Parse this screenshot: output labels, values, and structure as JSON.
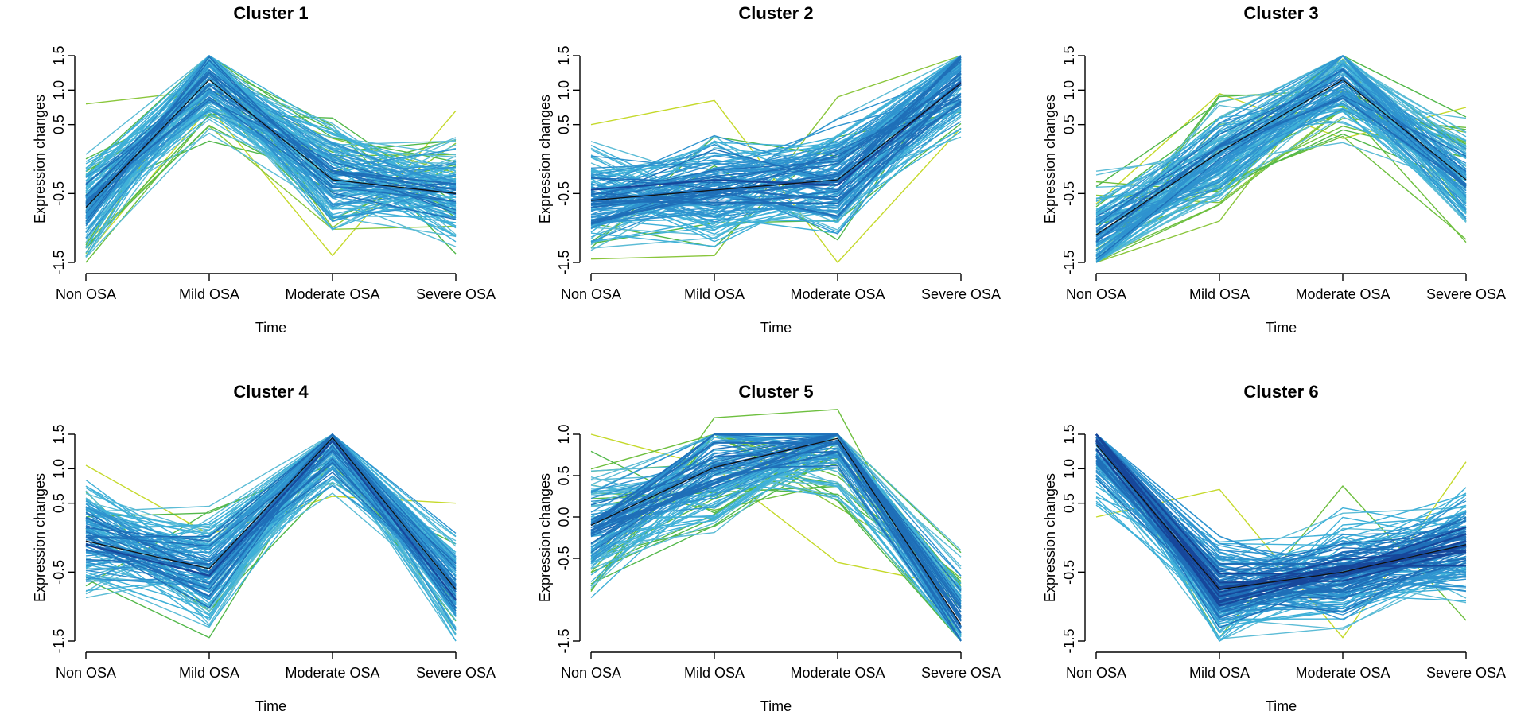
{
  "chart_data": [
    {
      "type": "line",
      "title": "Cluster 1",
      "xlabel": "Time",
      "ylabel": "Expression changes",
      "categories": [
        "Non OSA",
        "Mild OSA",
        "Moderate OSA",
        "Severe OSA"
      ],
      "y_ticks": [
        "-1.5",
        "-0.5",
        "0.5",
        "1.0",
        "1.5"
      ],
      "y_tick_values": [
        -1.5,
        -0.5,
        0.5,
        1.0,
        1.5
      ],
      "ylim": [
        -1.5,
        1.5
      ],
      "profile_count": 120,
      "centroid": [
        -0.7,
        1.15,
        -0.3,
        -0.5
      ],
      "series": [
        {
          "name": "profile",
          "values": [
            0.8,
            1.0,
            0.3,
            -0.2
          ]
        },
        {
          "name": "profile",
          "values": [
            -1.4,
            0.75,
            -1.4,
            0.7
          ]
        },
        {
          "name": "profile",
          "values": [
            -0.95,
            1.48,
            -0.35,
            -0.5
          ]
        }
      ]
    },
    {
      "type": "line",
      "title": "Cluster 2",
      "xlabel": "Time",
      "ylabel": "Expression changes",
      "categories": [
        "Non OSA",
        "Mild OSA",
        "Moderate OSA",
        "Severe OSA"
      ],
      "y_ticks": [
        "-1.5",
        "-0.5",
        "0.5",
        "1.0",
        "1.5"
      ],
      "y_tick_values": [
        -1.5,
        -0.5,
        0.5,
        1.0,
        1.5
      ],
      "ylim": [
        -1.5,
        1.5
      ],
      "profile_count": 120,
      "centroid": [
        -0.6,
        -0.45,
        -0.3,
        1.1
      ],
      "series": [
        {
          "name": "profile",
          "values": [
            0.5,
            0.85,
            -1.5,
            0.45
          ]
        },
        {
          "name": "profile",
          "values": [
            -1.45,
            -1.4,
            0.9,
            1.5
          ]
        },
        {
          "name": "profile",
          "values": [
            -0.7,
            -0.5,
            -0.25,
            1.45
          ]
        }
      ]
    },
    {
      "type": "line",
      "title": "Cluster 3",
      "xlabel": "Time",
      "ylabel": "Expression changes",
      "categories": [
        "Non OSA",
        "Mild OSA",
        "Moderate OSA",
        "Severe OSA"
      ],
      "y_ticks": [
        "-1.5",
        "-0.5",
        "0.5",
        "1.0",
        "1.5"
      ],
      "y_tick_values": [
        -1.5,
        -0.5,
        0.5,
        1.0,
        1.5
      ],
      "ylim": [
        -1.5,
        1.5
      ],
      "profile_count": 120,
      "centroid": [
        -1.1,
        0.1,
        1.15,
        -0.3
      ],
      "series": [
        {
          "name": "profile",
          "values": [
            -0.65,
            0.95,
            0.3,
            0.75
          ]
        },
        {
          "name": "profile",
          "values": [
            -1.5,
            -0.9,
            1.45,
            -0.9
          ]
        },
        {
          "name": "profile",
          "values": [
            -1.2,
            0.2,
            1.3,
            -0.4
          ]
        }
      ]
    },
    {
      "type": "line",
      "title": "Cluster 4",
      "xlabel": "Time",
      "ylabel": "Expression changes",
      "categories": [
        "Non OSA",
        "Mild OSA",
        "Moderate OSA",
        "Severe OSA"
      ],
      "y_ticks": [
        "-1.5",
        "-0.5",
        "0.5",
        "1.0",
        "1.5"
      ],
      "y_tick_values": [
        -1.5,
        -0.5,
        0.5,
        1.0,
        1.5
      ],
      "ylim": [
        -1.5,
        1.5
      ],
      "profile_count": 120,
      "centroid": [
        -0.05,
        -0.45,
        1.45,
        -0.75
      ],
      "series": [
        {
          "name": "profile",
          "values": [
            1.05,
            0.05,
            0.6,
            0.5
          ]
        },
        {
          "name": "profile",
          "values": [
            -0.6,
            -1.45,
            1.45,
            -1.4
          ]
        },
        {
          "name": "profile",
          "values": [
            -0.1,
            -0.55,
            1.4,
            -0.9
          ]
        }
      ]
    },
    {
      "type": "line",
      "title": "Cluster 5",
      "xlabel": "Time",
      "ylabel": "Expression changes",
      "categories": [
        "Non OSA",
        "Mild OSA",
        "Moderate OSA",
        "Severe OSA"
      ],
      "y_ticks": [
        "-1.5",
        "-0.5",
        "0.0",
        "0.5",
        "1.0"
      ],
      "y_tick_values": [
        -1.5,
        -0.5,
        0.0,
        0.5,
        1.0
      ],
      "ylim": [
        -1.5,
        1.0
      ],
      "profile_count": 120,
      "centroid": [
        -0.1,
        0.6,
        0.95,
        -1.3
      ],
      "series": [
        {
          "name": "profile",
          "values": [
            1.0,
            0.6,
            -0.55,
            -0.85
          ]
        },
        {
          "name": "profile",
          "values": [
            -0.9,
            1.2,
            1.3,
            -1.5
          ]
        },
        {
          "name": "profile",
          "values": [
            -0.2,
            0.45,
            0.9,
            -1.35
          ]
        }
      ]
    },
    {
      "type": "line",
      "title": "Cluster 6",
      "xlabel": "Time",
      "ylabel": "Expression changes",
      "categories": [
        "Non OSA",
        "Mild OSA",
        "Moderate OSA",
        "Severe OSA"
      ],
      "y_ticks": [
        "-1.5",
        "-0.5",
        "0.5",
        "1.0",
        "1.5"
      ],
      "y_tick_values": [
        -1.5,
        -0.5,
        0.5,
        1.0,
        1.5
      ],
      "ylim": [
        -1.5,
        1.5
      ],
      "profile_count": 120,
      "centroid": [
        1.35,
        -0.75,
        -0.5,
        -0.1
      ],
      "series": [
        {
          "name": "profile",
          "values": [
            0.3,
            0.7,
            -1.45,
            1.1
          ]
        },
        {
          "name": "profile",
          "values": [
            1.5,
            -1.45,
            0.75,
            -1.2
          ]
        },
        {
          "name": "profile",
          "values": [
            1.4,
            -0.85,
            -0.45,
            0.15
          ]
        }
      ]
    }
  ],
  "palette": {
    "profile_colors": [
      "#c5d92a",
      "#a9d02f",
      "#8ac63b",
      "#6dbf3e",
      "#52b84a",
      "#5cbcd6",
      "#3fb0d8",
      "#2f93cf",
      "#1f6fb8",
      "#17479b"
    ],
    "centroid_color": "#111111"
  }
}
